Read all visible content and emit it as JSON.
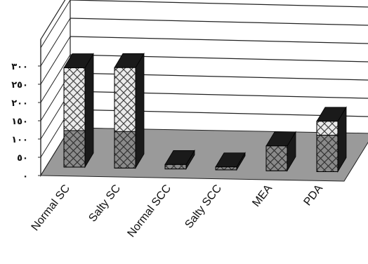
{
  "chart_data": {
    "type": "bar",
    "title": "",
    "xlabel": "",
    "ylabel": "",
    "categories": [
      "Normal SC",
      "Salty SC",
      "Normal SCC",
      "Salty SCC",
      "MEA",
      "PDA"
    ],
    "values": [
      272,
      275,
      12,
      8,
      68,
      138
    ],
    "y_ticks": [
      "٠",
      "٥٠",
      "١٠٠",
      "١٥٠",
      "٢٠٠",
      "٢٥٠",
      "٣٠٠"
    ],
    "ylim": [
      0,
      300
    ],
    "grid": true,
    "style": "3d",
    "colors": {
      "floor": "#9a9a9a",
      "bar_side": "#1a1a1a",
      "bar_front_fill": "#ebebeb",
      "hatch": "#444444"
    }
  }
}
